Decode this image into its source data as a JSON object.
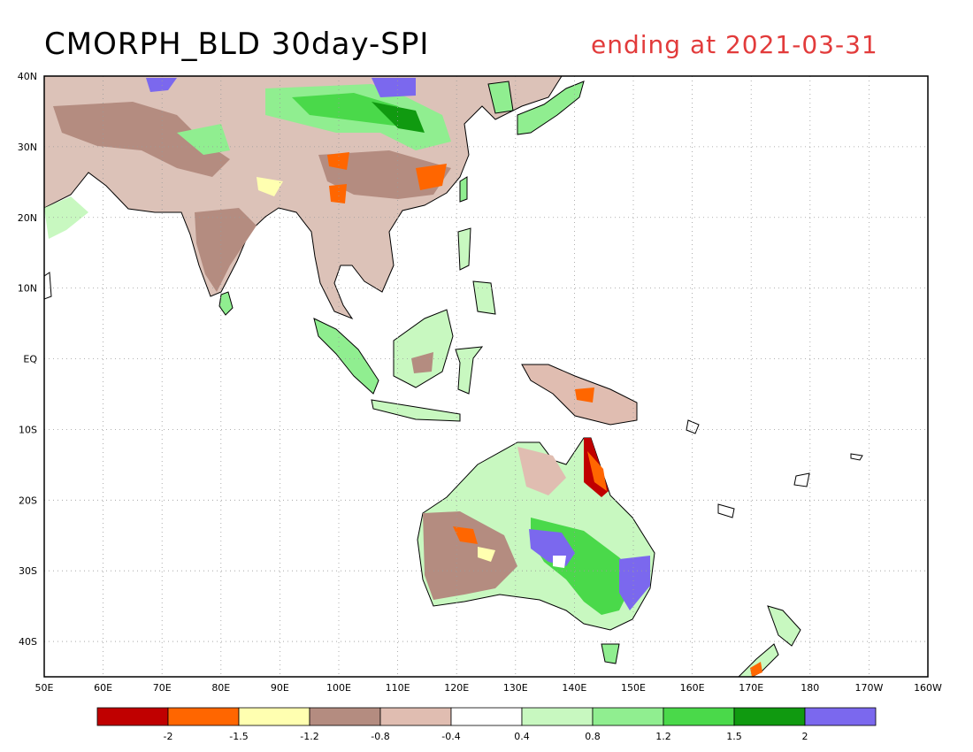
{
  "title": "CMORPH_BLD 30day-SPI",
  "subtitle": "ending at 2021-03-31",
  "colors": {
    "title": "#000000",
    "subtitle": "#e23b3b",
    "coast": "#000000",
    "grid": "#9a9a9a"
  },
  "map": {
    "lon_range": [
      50,
      200
    ],
    "lat_range": [
      -45,
      40
    ],
    "lon_ticks": [
      "50E",
      "60E",
      "70E",
      "80E",
      "90E",
      "100E",
      "110E",
      "120E",
      "130E",
      "140E",
      "150E",
      "160E",
      "170E",
      "180",
      "170W",
      "160W"
    ],
    "lat_ticks": [
      "40N",
      "30N",
      "20N",
      "10N",
      "EQ",
      "10S",
      "20S",
      "30S",
      "40S"
    ]
  },
  "legend": {
    "colors": [
      "#c00000",
      "#ff6600",
      "#ffffb0",
      "#b48c80",
      "#e0bdb1",
      "#ffffff",
      "#c8f8c0",
      "#90ee90",
      "#4ad94a",
      "#109a10",
      "#7b68ee"
    ],
    "labels": [
      "-2",
      "-1.5",
      "-1.2",
      "-0.8",
      "-0.4",
      "0.4",
      "0.8",
      "1.2",
      "1.5",
      "2"
    ]
  }
}
